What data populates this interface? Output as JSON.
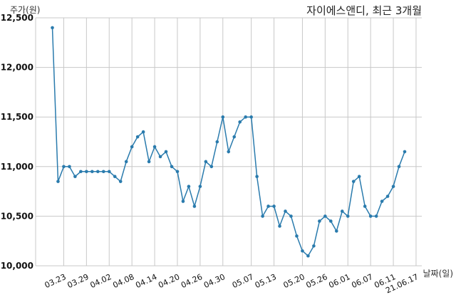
{
  "chart_data": {
    "type": "line",
    "title": "자이에스앤디, 최근 3개월",
    "ylabel": "주가(원)",
    "xlabel": "날짜(일)",
    "ylim": [
      10000,
      12500
    ],
    "y_ticks": [
      10000,
      10500,
      11000,
      11500,
      12000,
      12500
    ],
    "y_tick_labels": [
      "10,000",
      "10,500",
      "11,000",
      "11,500",
      "12,000",
      "12,500"
    ],
    "x_tick_labels": [
      "03.23",
      "03.29",
      "04.02",
      "04.08",
      "04.14",
      "04.20",
      "04.26",
      "04.30",
      "05.07",
      "05.13",
      "05.20",
      "05.26",
      "06.01",
      "06.07",
      "06.11",
      "21.06.17"
    ],
    "x_tick_index": [
      2,
      6,
      10,
      14,
      18,
      22,
      26,
      30,
      35,
      39,
      44,
      48,
      52,
      56,
      60,
      64
    ],
    "grid": true,
    "color": "#2a7bad",
    "series": [
      {
        "values": [
          12400,
          10850,
          11000,
          11000,
          10900,
          10950,
          10950,
          10950,
          10950,
          10950,
          10950,
          10900,
          10850,
          11050,
          11200,
          11300,
          11350,
          11050,
          11200,
          11100,
          11150,
          11000,
          10950,
          10650,
          10800,
          10600,
          10800,
          11050,
          11000,
          11250,
          11500,
          11150,
          11300,
          11450,
          11500,
          11500,
          10900,
          10500,
          10600,
          10600,
          10400,
          10550,
          10500,
          10300,
          10150,
          10100,
          10200,
          10450,
          10500,
          10450,
          10350,
          10550,
          10500,
          10850,
          10900,
          10600,
          10500,
          10500,
          10650,
          10700,
          10800,
          11000,
          11150
        ]
      }
    ]
  }
}
